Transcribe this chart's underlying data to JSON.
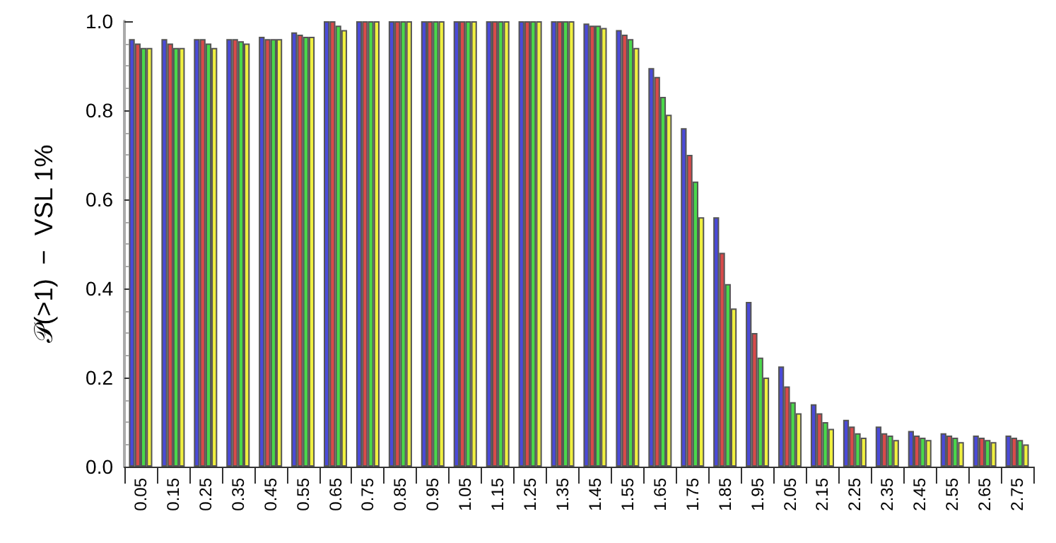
{
  "chart_data": {
    "type": "bar",
    "ylabel": "𝒫(>1)  −  VSL 1%",
    "categories": [
      "0.05",
      "0.15",
      "0.25",
      "0.35",
      "0.45",
      "0.55",
      "0.65",
      "0.75",
      "0.85",
      "0.95",
      "1.05",
      "1.15",
      "1.25",
      "1.35",
      "1.45",
      "1.55",
      "1.65",
      "1.75",
      "1.85",
      "1.95",
      "2.05",
      "2.15",
      "2.25",
      "2.35",
      "2.45",
      "2.55",
      "2.65",
      "2.75"
    ],
    "series": [
      {
        "color": "#4a4ad8",
        "values": [
          0.96,
          0.96,
          0.96,
          0.96,
          0.965,
          0.975,
          1,
          1,
          1,
          1,
          1,
          1,
          1,
          1,
          0.995,
          0.98,
          0.895,
          0.76,
          0.56,
          0.37,
          0.225,
          0.14,
          0.105,
          0.09,
          0.08,
          0.075,
          0.07,
          0.07
        ]
      },
      {
        "color": "#d84a4a",
        "values": [
          0.95,
          0.95,
          0.96,
          0.96,
          0.96,
          0.97,
          1,
          1,
          1,
          1,
          1,
          1,
          1,
          1,
          0.99,
          0.97,
          0.875,
          0.7,
          0.48,
          0.3,
          0.18,
          0.12,
          0.09,
          0.075,
          0.07,
          0.07,
          0.065,
          0.065
        ]
      },
      {
        "color": "#4ad84a",
        "values": [
          0.94,
          0.94,
          0.95,
          0.955,
          0.96,
          0.965,
          0.99,
          1,
          1,
          1,
          1,
          1,
          1,
          1,
          0.99,
          0.96,
          0.83,
          0.64,
          0.41,
          0.245,
          0.145,
          0.1,
          0.075,
          0.07,
          0.065,
          0.065,
          0.06,
          0.06
        ]
      },
      {
        "color": "#f0f040",
        "values": [
          0.94,
          0.94,
          0.94,
          0.95,
          0.96,
          0.965,
          0.98,
          1,
          1,
          1,
          1,
          1,
          1,
          1,
          0.985,
          0.94,
          0.79,
          0.56,
          0.355,
          0.2,
          0.12,
          0.085,
          0.065,
          0.06,
          0.06,
          0.055,
          0.055,
          0.05
        ]
      }
    ],
    "ylim": [
      0,
      1
    ],
    "yticks": [
      {
        "value": 0,
        "label": "0.0"
      },
      {
        "value": 0.2,
        "label": "0.2"
      },
      {
        "value": 0.4,
        "label": "0.4"
      },
      {
        "value": 0.6,
        "label": "0.6"
      },
      {
        "value": 0.8,
        "label": "0.8"
      },
      {
        "value": 1,
        "label": "1.0"
      }
    ],
    "grid": false
  }
}
